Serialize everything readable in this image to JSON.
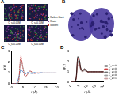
{
  "figure": {
    "panel_labels": [
      "A",
      "B",
      "C",
      "D"
    ],
    "A": {
      "snapshots": [
        "C_s=0.05M",
        "C_s=0.10M",
        "C_s=0.20M",
        "C_s=0.50M"
      ],
      "legend": [
        {
          "name": "Carbon black",
          "color": "#3c8c3c"
        },
        {
          "name": "Chain",
          "color": "#8c3ca0"
        },
        {
          "name": "Solvent",
          "color": "#c03030"
        }
      ]
    },
    "B": {
      "color": "#4a3aa0"
    }
  },
  "chart_data": [
    {
      "type": "line",
      "x_label": "r (Å)",
      "y_label": "g(r)",
      "xlim": [
        0,
        20
      ],
      "xticks": [
        0,
        5,
        10,
        15,
        20
      ],
      "ylim": [
        0,
        3
      ],
      "yticks": [
        0,
        1,
        2,
        3
      ],
      "x": [
        0,
        1,
        2,
        3,
        4,
        5,
        6,
        7,
        8,
        9,
        10,
        11,
        12,
        13,
        14,
        15,
        16,
        17,
        18,
        19,
        20
      ],
      "series": [
        {
          "color": "#d04040",
          "line_style": "dashed",
          "values": [
            0,
            0,
            0,
            0.2,
            2.6,
            1.4,
            0.6,
            0.9,
            1.2,
            1.1,
            0.95,
            1,
            1.02,
            1,
            1,
            1,
            1,
            1,
            1,
            1,
            1
          ]
        },
        {
          "color": "#909090",
          "line_style": "solid",
          "values": [
            0,
            0,
            0,
            0.1,
            2.3,
            1.5,
            0.7,
            0.85,
            1.15,
            1.05,
            0.97,
            1,
            1,
            1,
            1,
            1,
            1,
            1,
            1,
            1,
            1
          ]
        },
        {
          "color": "#3070c0",
          "line_style": "solid",
          "values": [
            0,
            0,
            0,
            0.5,
            1.3,
            1.1,
            0.9,
            1.05,
            1,
            0.95,
            1.05,
            1,
            0.97,
            1.03,
            1,
            1,
            1,
            1,
            1,
            1,
            1
          ]
        }
      ]
    },
    {
      "type": "line",
      "x_label": "r (Å)",
      "y_label": "g(r)",
      "xlim": [
        0,
        20
      ],
      "xticks": [
        0,
        5,
        10,
        15,
        20
      ],
      "ylim": [
        0,
        3
      ],
      "yticks": [
        0,
        1,
        2,
        3
      ],
      "legend": "right",
      "x": [
        0,
        1,
        2,
        3,
        4,
        5,
        6,
        7,
        8,
        9,
        10,
        11,
        12,
        13,
        14,
        15,
        16,
        17,
        18,
        19,
        20
      ],
      "series": [
        {
          "name": "C_s=0.05M",
          "color": "#000000",
          "line_style": "solid",
          "values": [
            0,
            0,
            0,
            0.4,
            2.5,
            2.2,
            1.3,
            1.1,
            1.3,
            1.2,
            1.0,
            1,
            1,
            1,
            1,
            1,
            1,
            1,
            1,
            1,
            1
          ]
        },
        {
          "name": "C_s=0.10M",
          "color": "#d04040",
          "line_style": "solid",
          "values": [
            0,
            0,
            0,
            0.35,
            2.3,
            2.0,
            1.25,
            1.1,
            1.25,
            1.15,
            1.0,
            1,
            1,
            1,
            1,
            1,
            1,
            1,
            1,
            1,
            1
          ]
        },
        {
          "name": "C_s=0.20M",
          "color": "#707070",
          "line_style": "solid",
          "values": [
            0,
            0,
            0,
            0.3,
            2.1,
            1.85,
            1.2,
            1.05,
            1.2,
            1.1,
            1.0,
            1,
            1,
            1,
            1,
            1,
            1,
            1,
            1,
            1,
            1
          ]
        },
        {
          "name": "C_s=0.50M",
          "color": "#a0a0a0",
          "line_style": "solid",
          "values": [
            0,
            0,
            0,
            0.25,
            1.9,
            1.7,
            1.15,
            1.05,
            1.15,
            1.08,
            1.0,
            1,
            1,
            1,
            1,
            1,
            1,
            1,
            1,
            1,
            1
          ]
        },
        {
          "name": "C_s=1.00M",
          "color": "#c8a0a0",
          "line_style": "solid",
          "values": [
            0,
            0,
            0,
            0.2,
            1.7,
            1.55,
            1.1,
            1.0,
            1.1,
            1.05,
            1.0,
            1,
            1,
            1,
            1,
            1,
            1,
            1,
            1,
            1,
            1
          ]
        }
      ]
    }
  ]
}
